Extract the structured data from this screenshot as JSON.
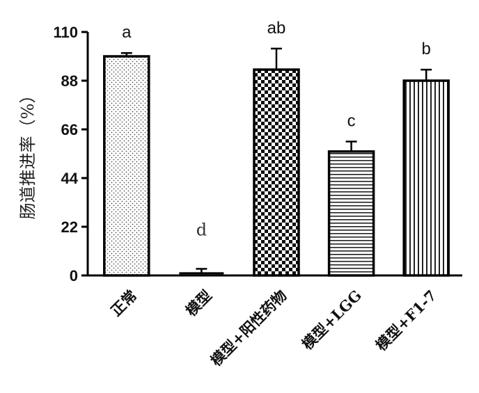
{
  "chart_data": {
    "type": "bar",
    "title": "",
    "xlabel": "",
    "ylabel": "肠道推进率（%）",
    "ylim": [
      0,
      110
    ],
    "yticks": [
      0,
      22,
      44,
      66,
      88,
      110
    ],
    "grid": false,
    "categories": [
      "正常",
      "模型",
      "模型+阳性药物",
      "模型+LGG",
      "模型+F1-7"
    ],
    "values": [
      99,
      1,
      93,
      56,
      88
    ],
    "errors": [
      1.5,
      2,
      9.5,
      4.5,
      5
    ],
    "significance": [
      "a",
      "d",
      "ab",
      "c",
      "b"
    ],
    "patterns": [
      "dots",
      "none",
      "checker",
      "hlines",
      "vlines"
    ],
    "colors": {
      "outline": "#000000",
      "fill": "#ffffff",
      "pattern": "#111111"
    }
  }
}
